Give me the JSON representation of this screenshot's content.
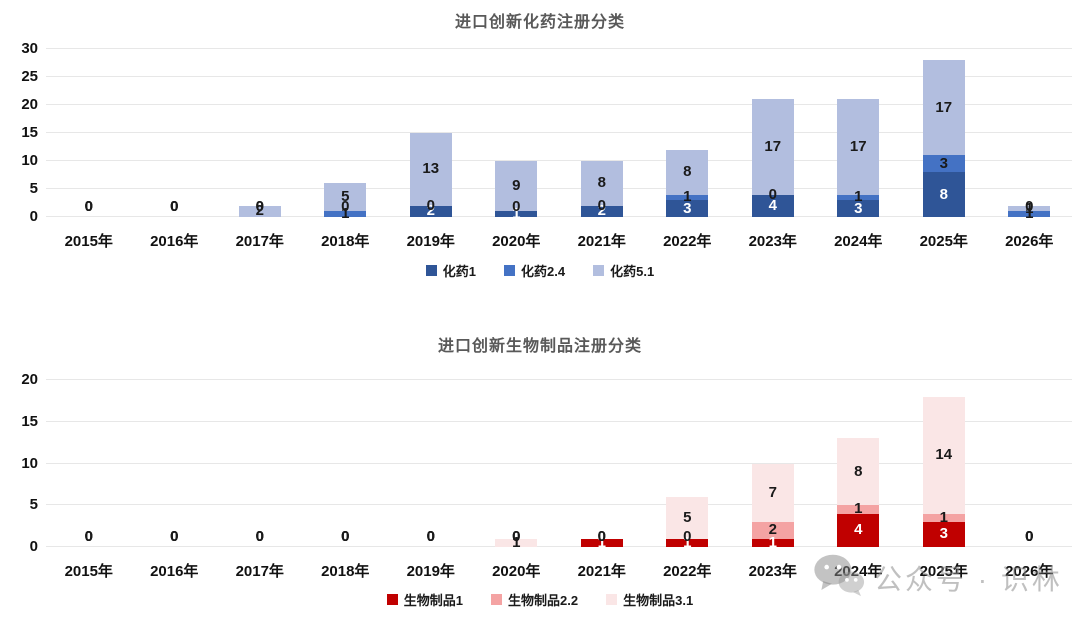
{
  "chart_data": [
    {
      "type": "bar",
      "stacked": true,
      "title": "进口创新化药注册分类",
      "categories": [
        "2015年",
        "2016年",
        "2017年",
        "2018年",
        "2019年",
        "2020年",
        "2021年",
        "2022年",
        "2023年",
        "2024年",
        "2025年",
        "2026年"
      ],
      "series": [
        {
          "name": "化药1",
          "color": "#2F5597",
          "values": [
            0,
            0,
            0,
            0,
            2,
            1,
            2,
            3,
            4,
            3,
            8,
            0
          ]
        },
        {
          "name": "化药2.4",
          "color": "#4472C4",
          "values": [
            0,
            0,
            0,
            1,
            0,
            0,
            0,
            1,
            0,
            1,
            3,
            1
          ]
        },
        {
          "name": "化药5.1",
          "color": "#B2BEDF",
          "values": [
            0,
            0,
            2,
            5,
            13,
            9,
            8,
            8,
            17,
            17,
            17,
            1
          ]
        }
      ],
      "ylim": [
        0,
        30
      ],
      "yticks": [
        0,
        5,
        10,
        15,
        20,
        25,
        30
      ],
      "grid": true,
      "legend_position": "bottom",
      "label_color_inside_first_series": "#ffffff",
      "label_color_default": "#1a1a1a"
    },
    {
      "type": "bar",
      "stacked": true,
      "title": "进口创新生物制品注册分类",
      "categories": [
        "2015年",
        "2016年",
        "2017年",
        "2018年",
        "2019年",
        "2020年",
        "2021年",
        "2022年",
        "2023年",
        "2024年",
        "2025年",
        "2026年"
      ],
      "series": [
        {
          "name": "生物制品1",
          "color": "#C00000",
          "values": [
            0,
            0,
            0,
            0,
            0,
            0,
            1,
            1,
            1,
            4,
            3,
            0
          ]
        },
        {
          "name": "生物制品2.2",
          "color": "#F4A3A3",
          "values": [
            0,
            0,
            0,
            0,
            0,
            0,
            0,
            0,
            2,
            1,
            1,
            0
          ]
        },
        {
          "name": "生物制品3.1",
          "color": "#FAE6E6",
          "values": [
            0,
            0,
            0,
            0,
            0,
            1,
            0,
            5,
            7,
            8,
            14,
            0
          ]
        }
      ],
      "ylim": [
        0,
        20
      ],
      "yticks": [
        0,
        5,
        10,
        15,
        20
      ],
      "grid": true,
      "legend_position": "bottom",
      "label_color_inside_first_series": "#ffffff",
      "label_color_default": "#1a1a1a"
    }
  ],
  "watermark": {
    "icon": "wechat-icon",
    "text": "公众号 · 识林"
  }
}
